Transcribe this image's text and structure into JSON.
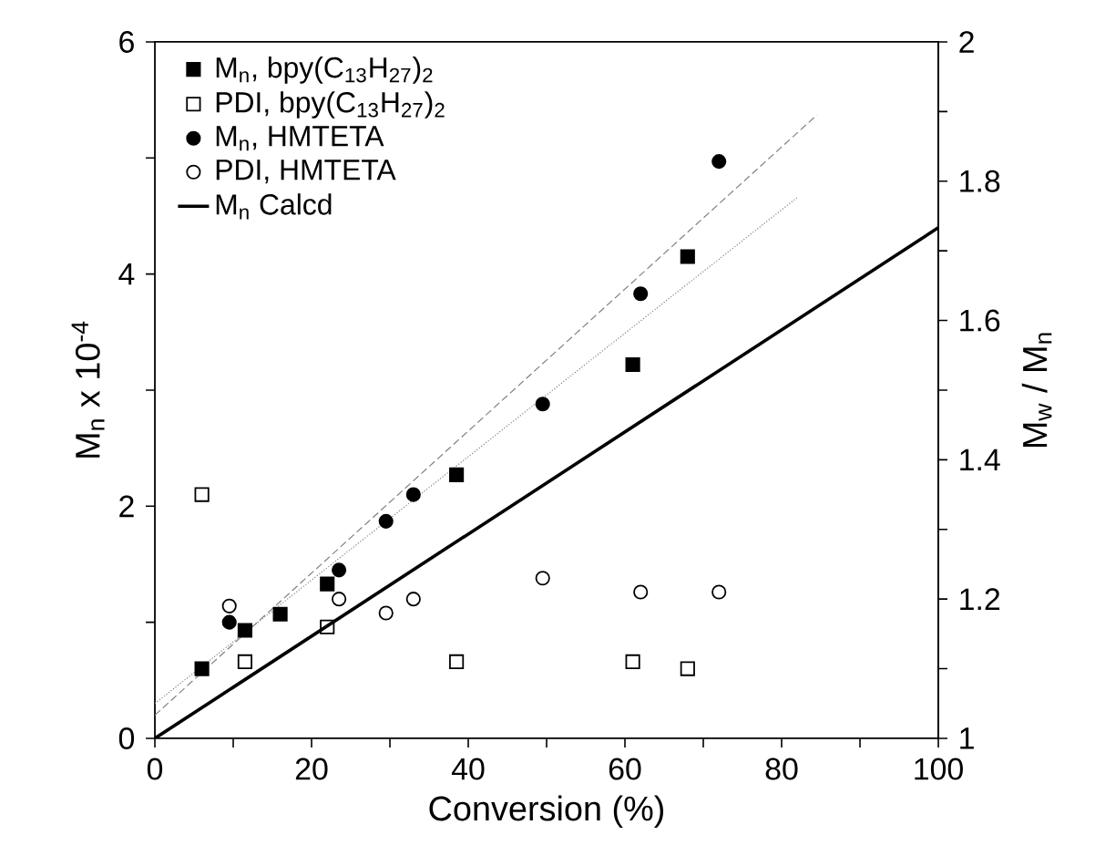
{
  "chart_data": {
    "type": "scatter",
    "xlabel": "Conversion  (%)",
    "ylabel": "M$_{n}$ x 10$^{-4}$",
    "y2label": "M$_{w}$ / M$_{n}$",
    "xlim": [
      0,
      100
    ],
    "xticks": [
      0,
      {
        "value": 10,
        "label": null
      },
      20,
      {
        "value": 30,
        "label": null
      },
      40,
      {
        "value": 50,
        "label": null
      },
      60,
      {
        "value": 70,
        "label": null
      },
      80,
      {
        "value": 90,
        "label": null
      },
      100
    ],
    "ylim": [
      0,
      6
    ],
    "yticks": [
      0,
      {
        "value": 1,
        "label": null
      },
      2,
      {
        "value": 3,
        "label": null
      },
      4,
      {
        "value": 5,
        "label": null
      },
      6
    ],
    "y2lim": [
      1,
      2
    ],
    "y2ticks": [
      1,
      {
        "value": 1.1,
        "label": null
      },
      1.2,
      {
        "value": 1.3,
        "label": null
      },
      1.4,
      {
        "value": 1.5,
        "label": null
      },
      1.6,
      {
        "value": 1.7,
        "label": null
      },
      1.8,
      {
        "value": 1.9,
        "label": null
      },
      2
    ],
    "grid": false,
    "legend": "top left",
    "series": [
      {
        "name": "M$_{n}$, bpy(C$_{13}$H$_{27}$)$_{2}$",
        "marker": "square",
        "color": "#000000",
        "x": [
          6,
          11.5,
          16,
          22,
          38.5,
          61,
          68
        ],
        "values": [
          0.6,
          0.93,
          1.07,
          1.33,
          2.27,
          3.22,
          4.15
        ]
      },
      {
        "name": "PDI, bpy(C$_{13}$H$_{27}$)$_{2}$",
        "axis": "y2",
        "marker": "square",
        "color": "#ffffff",
        "x": [
          6,
          11.5,
          22,
          38.5,
          61,
          68
        ],
        "values": [
          1.35,
          1.11,
          1.16,
          1.11,
          1.11,
          1.1
        ]
      },
      {
        "name": "M$_{n}$, HMTETA",
        "marker": "circle",
        "color": "#000000",
        "x": [
          9.5,
          23.5,
          29.5,
          33,
          49.5,
          62,
          72
        ],
        "values": [
          1.0,
          1.45,
          1.87,
          2.1,
          2.88,
          3.83,
          4.97
        ]
      },
      {
        "name": "PDI, HMTETA",
        "axis": "y2",
        "marker": "circle",
        "color": "#ffffff",
        "x": [
          9.5,
          23.5,
          29.5,
          33,
          49.5,
          62,
          72
        ],
        "values": [
          1.19,
          1.2,
          1.18,
          1.2,
          1.23,
          1.21,
          1.21
        ]
      },
      {
        "name": "M$_{n}$ Calcd",
        "type": "line",
        "line_style": "solid",
        "marker": "none",
        "color": "#000000",
        "x": [
          0,
          100
        ],
        "values": [
          0,
          4.4
        ]
      },
      {
        "type": "line",
        "line_style": "dashed",
        "marker": "none",
        "color": "#808080",
        "x": [
          0,
          84.5
        ],
        "values": [
          0.2,
          5.37
        ]
      },
      {
        "type": "line",
        "line_style": "dotted",
        "marker": "none",
        "color": "#808080",
        "x": [
          0,
          82
        ],
        "values": [
          0.3,
          4.66
        ]
      }
    ]
  }
}
